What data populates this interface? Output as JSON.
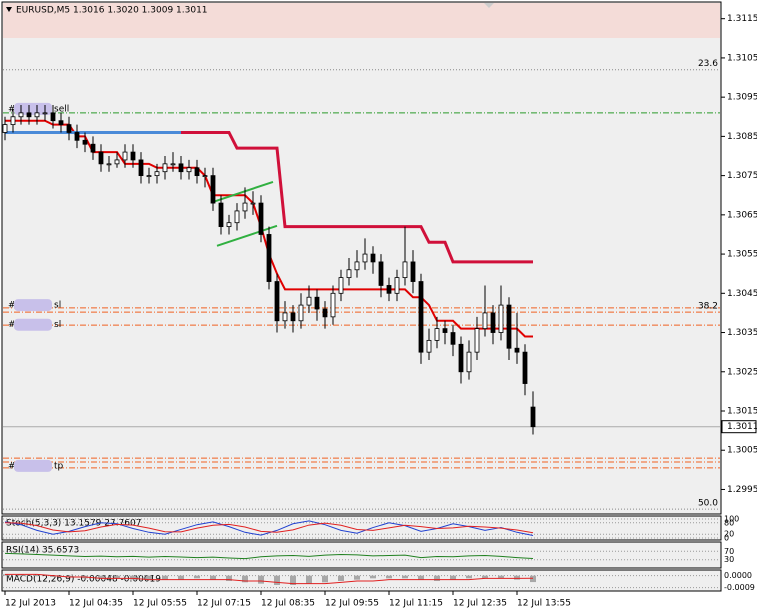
{
  "chart_data": [
    {
      "type": "candlestick",
      "title": "EURUSD,M5  1.3016 1.3020 1.3009 1.3011",
      "candles": [
        [
          1.3086,
          1.309,
          1.3084,
          1.3088
        ],
        [
          1.3088,
          1.3092,
          1.3086,
          1.309
        ],
        [
          1.309,
          1.3093,
          1.3088,
          1.3091
        ],
        [
          1.3091,
          1.3093,
          1.3088,
          1.309
        ],
        [
          1.309,
          1.3093,
          1.3088,
          1.3091
        ],
        [
          1.3091,
          1.3093,
          1.3089,
          1.3091
        ],
        [
          1.3091,
          1.3093,
          1.3087,
          1.3089
        ],
        [
          1.3089,
          1.3091,
          1.3086,
          1.3088
        ],
        [
          1.3088,
          1.309,
          1.3084,
          1.3086
        ],
        [
          1.3086,
          1.3088,
          1.3082,
          1.3084
        ],
        [
          1.3084,
          1.3086,
          1.3081,
          1.3083
        ],
        [
          1.3083,
          1.3085,
          1.3079,
          1.3081
        ],
        [
          1.3081,
          1.3083,
          1.3076,
          1.3078
        ],
        [
          1.3078,
          1.308,
          1.3076,
          1.3078
        ],
        [
          1.3078,
          1.3081,
          1.3077,
          1.3079
        ],
        [
          1.3079,
          1.3083,
          1.3077,
          1.3081
        ],
        [
          1.3081,
          1.3083,
          1.3077,
          1.3079
        ],
        [
          1.3079,
          1.3081,
          1.3073,
          1.3075
        ],
        [
          1.3075,
          1.3077,
          1.3073,
          1.3075
        ],
        [
          1.3075,
          1.3078,
          1.3073,
          1.3076
        ],
        [
          1.3076,
          1.308,
          1.3074,
          1.3078
        ],
        [
          1.3078,
          1.3081,
          1.3076,
          1.3078
        ],
        [
          1.3078,
          1.308,
          1.3074,
          1.3076
        ],
        [
          1.3076,
          1.3079,
          1.3074,
          1.3077
        ],
        [
          1.3077,
          1.3079,
          1.3073,
          1.3075
        ],
        [
          1.3075,
          1.3077,
          1.3072,
          1.3075
        ],
        [
          1.3075,
          1.3077,
          1.3066,
          1.3068
        ],
        [
          1.3068,
          1.307,
          1.306,
          1.3062
        ],
        [
          1.3062,
          1.3065,
          1.306,
          1.3063
        ],
        [
          1.3063,
          1.3068,
          1.3061,
          1.3066
        ],
        [
          1.3066,
          1.3072,
          1.3064,
          1.3068
        ],
        [
          1.3068,
          1.3071,
          1.3065,
          1.3068
        ],
        [
          1.3068,
          1.307,
          1.3058,
          1.306
        ],
        [
          1.306,
          1.3062,
          1.3046,
          1.3048
        ],
        [
          1.3048,
          1.305,
          1.3035,
          1.3038
        ],
        [
          1.3038,
          1.3043,
          1.3036,
          1.304
        ],
        [
          1.304,
          1.3042,
          1.3035,
          1.3038
        ],
        [
          1.3038,
          1.3045,
          1.3036,
          1.3042
        ],
        [
          1.3042,
          1.3047,
          1.304,
          1.3044
        ],
        [
          1.3044,
          1.3046,
          1.3038,
          1.3041
        ],
        [
          1.3041,
          1.3043,
          1.3036,
          1.3039
        ],
        [
          1.3039,
          1.3047,
          1.3037,
          1.3045
        ],
        [
          1.3045,
          1.3051,
          1.3043,
          1.3049
        ],
        [
          1.3049,
          1.3054,
          1.3047,
          1.3051
        ],
        [
          1.3051,
          1.3056,
          1.3049,
          1.3053
        ],
        [
          1.3053,
          1.3059,
          1.3051,
          1.3055
        ],
        [
          1.3055,
          1.3057,
          1.305,
          1.3053
        ],
        [
          1.3053,
          1.3055,
          1.3044,
          1.3047
        ],
        [
          1.3047,
          1.3049,
          1.3043,
          1.3045
        ],
        [
          1.3045,
          1.3051,
          1.3043,
          1.3049
        ],
        [
          1.3049,
          1.3062,
          1.3047,
          1.3053
        ],
        [
          1.3053,
          1.3056,
          1.3045,
          1.3048
        ],
        [
          1.3048,
          1.305,
          1.3027,
          1.303
        ],
        [
          1.303,
          1.3036,
          1.3028,
          1.3033
        ],
        [
          1.3033,
          1.3039,
          1.3031,
          1.3036
        ],
        [
          1.3036,
          1.3038,
          1.3032,
          1.3035
        ],
        [
          1.3035,
          1.3037,
          1.3029,
          1.3032
        ],
        [
          1.3032,
          1.3034,
          1.3022,
          1.3025
        ],
        [
          1.3025,
          1.3033,
          1.3023,
          1.303
        ],
        [
          1.303,
          1.3039,
          1.3028,
          1.3036
        ],
        [
          1.3036,
          1.3047,
          1.3034,
          1.304
        ],
        [
          1.304,
          1.3042,
          1.3032,
          1.3035
        ],
        [
          1.3035,
          1.3047,
          1.3033,
          1.3042
        ],
        [
          1.3042,
          1.3044,
          1.3028,
          1.3031
        ],
        [
          1.3031,
          1.304,
          1.3027,
          1.303
        ],
        [
          1.303,
          1.3032,
          1.3019,
          1.3022
        ],
        [
          1.3016,
          1.302,
          1.3009,
          1.3011
        ]
      ],
      "lines": [
        {
          "color": "#e00000",
          "width": 2,
          "values": [
            1.3089,
            1.3089,
            1.3089,
            1.3089,
            1.3089,
            1.3089,
            1.3088,
            1.3088,
            1.3088,
            1.3085,
            1.3085,
            1.3081,
            1.3081,
            1.3081,
            1.3081,
            1.3078,
            1.3078,
            1.3078,
            1.3078,
            1.3077,
            1.3077,
            1.3077,
            1.3077,
            1.3077,
            1.3077,
            1.3075,
            1.307,
            1.307,
            1.307,
            1.307,
            1.307,
            1.3068,
            1.3062,
            1.3055,
            1.305,
            1.3046,
            1.3046,
            1.3046,
            1.3046,
            1.3046,
            1.3046,
            1.3046,
            1.3046,
            1.3046,
            1.3046,
            1.3046,
            1.3046,
            1.3046,
            1.3046,
            1.3046,
            1.3046,
            1.3044,
            1.3044,
            1.3042,
            1.3038,
            1.3038,
            1.3038,
            1.3036,
            1.3036,
            1.3036,
            1.3036,
            1.3036,
            1.3036,
            1.3036,
            1.3036,
            1.3034,
            1.3034
          ]
        },
        {
          "color": "#4a8ad8",
          "width": 3,
          "x": [
            0,
            22
          ],
          "values": [
            1.3086,
            1.3086
          ]
        },
        {
          "color": "#d0103a",
          "width": 3,
          "x": [
            22,
            28,
            29,
            34,
            35,
            52,
            53,
            55,
            56,
            66
          ],
          "values": [
            1.3086,
            1.3086,
            1.3082,
            1.3082,
            1.3062,
            1.3062,
            1.3058,
            1.3058,
            1.3053,
            1.3053
          ]
        },
        {
          "color": "#30b040",
          "width": 2,
          "x": [
            26,
            33.5
          ],
          "values": [
            1.30683,
            1.30734
          ]
        },
        {
          "color": "#30b040",
          "width": 2,
          "x": [
            26.5,
            34
          ],
          "values": [
            1.30571,
            1.30622
          ]
        }
      ],
      "levels": [
        {
          "value": 1.3102,
          "color": "#888",
          "style": "dot",
          "label": "23.6"
        },
        {
          "value": 1.3091,
          "color": "#2a9a2a",
          "style": "dashdot"
        },
        {
          "value": 1.30413,
          "color": "#f06020",
          "style": "dashdot"
        },
        {
          "value": 1.30402,
          "color": "#f06020",
          "style": "dashdot",
          "label": "38.2"
        },
        {
          "value": 1.30369,
          "color": "#f06020",
          "style": "dashdot"
        },
        {
          "value": 1.3003,
          "color": "#f06020",
          "style": "dashdot"
        },
        {
          "value": 1.3002,
          "color": "#f06020",
          "style": "dashdot"
        },
        {
          "value": 1.30005,
          "color": "#f06020",
          "style": "dashdot"
        },
        {
          "value": 1.299,
          "color": "#888",
          "style": "dot",
          "label": "50.0"
        }
      ],
      "trade_labels": [
        {
          "prefix": "#",
          "text": "sell",
          "value": 1.3092
        },
        {
          "prefix": "#",
          "text": "sl",
          "value": 1.3042
        },
        {
          "prefix": "#",
          "text": "sl",
          "value": 1.3037
        },
        {
          "prefix": "#",
          "text": "tp",
          "value": 1.3001
        }
      ],
      "current_price": 1.3011,
      "x_labels": [
        "12 Jul 2013",
        "12 Jul 04:35",
        "12 Jul 05:55",
        "12 Jul 07:15",
        "12 Jul 08:35",
        "12 Jul 09:55",
        "12 Jul 11:15",
        "12 Jul 12:35",
        "12 Jul 13:55"
      ],
      "ylim": [
        1.2989,
        1.3119
      ],
      "yticks": [
        1.3115,
        1.3105,
        1.3095,
        1.3085,
        1.3075,
        1.3065,
        1.3055,
        1.3045,
        1.3035,
        1.3025,
        1.3015,
        1.3005,
        1.2995
      ]
    },
    {
      "type": "line",
      "title": "Stoch(5,3,3) 13.1579 27.7607",
      "ylim": [
        0,
        100
      ],
      "yticks": [
        0,
        20,
        80,
        100
      ],
      "series": [
        {
          "color": "#2040d0",
          "values": [
            85,
            70,
            40,
            20,
            35,
            60,
            80,
            75,
            50,
            30,
            20,
            45,
            70,
            85,
            60,
            30,
            15,
            40,
            75,
            90,
            70,
            40,
            25,
            55,
            80,
            65,
            35,
            50,
            75,
            60,
            40,
            55,
            30,
            13.1579
          ]
        },
        {
          "color": "#e02020",
          "values": [
            80,
            78,
            65,
            42,
            32,
            38,
            58,
            72,
            68,
            52,
            33,
            32,
            52,
            67,
            72,
            58,
            35,
            30,
            43,
            68,
            78,
            67,
            45,
            40,
            53,
            67,
            60,
            50,
            53,
            62,
            58,
            52,
            42,
            27.7607
          ]
        }
      ]
    },
    {
      "type": "line",
      "title": "RSI(14) 35.6573",
      "ylim": [
        0,
        100
      ],
      "yticks": [
        30,
        70
      ],
      "series": [
        {
          "color": "#208020",
          "values": [
            60,
            58,
            55,
            52,
            48,
            45,
            47,
            44,
            46,
            42,
            45,
            43,
            40,
            42,
            38,
            35,
            44,
            48,
            50,
            46,
            52,
            55,
            53,
            48,
            50,
            52,
            40,
            45,
            44,
            48,
            50,
            46,
            40,
            35.6573
          ]
        }
      ]
    },
    {
      "type": "macd",
      "title": "MACD(12,26,9) -0.00048 -0.00019",
      "ylim": [
        -0.001,
        0.0002
      ],
      "yticks": [
        {
          "value": 0,
          "label": "0.0000"
        },
        -0.0009
      ],
      "histogram": {
        "color": "#a8a8a8",
        "values": [
          0.0001,
          0.0001,
          0,
          -0.0001,
          -0.0001,
          -0.0002,
          -0.0002,
          -0.0002,
          -0.0003,
          -0.0003,
          -0.0003,
          -0.0003,
          -0.0002,
          -0.0003,
          -0.0004,
          -0.0005,
          -0.0006,
          -0.0007,
          -0.0007,
          -0.0006,
          -0.0005,
          -0.0004,
          -0.0003,
          -0.0002,
          -0.0002,
          -0.0002,
          -0.0003,
          -0.0004,
          -0.0003,
          -0.0002,
          -0.0002,
          -0.0002,
          -0.0003,
          -0.00048
        ]
      },
      "series": [
        {
          "color": "#e02020",
          "values": [
            0.0001,
            0.0001,
            0.0001,
            0,
            -0.0001,
            -0.0001,
            -0.0002,
            -0.0002,
            -0.0002,
            -0.0003,
            -0.0003,
            -0.0003,
            -0.0003,
            -0.0003,
            -0.0003,
            -0.0004,
            -0.0004,
            -0.0005,
            -0.0006,
            -0.0006,
            -0.0006,
            -0.0005,
            -0.0004,
            -0.0004,
            -0.0003,
            -0.0003,
            -0.0003,
            -0.0003,
            -0.0003,
            -0.0003,
            -0.0002,
            -0.0002,
            -0.0002,
            -0.00019
          ]
        }
      ]
    }
  ]
}
